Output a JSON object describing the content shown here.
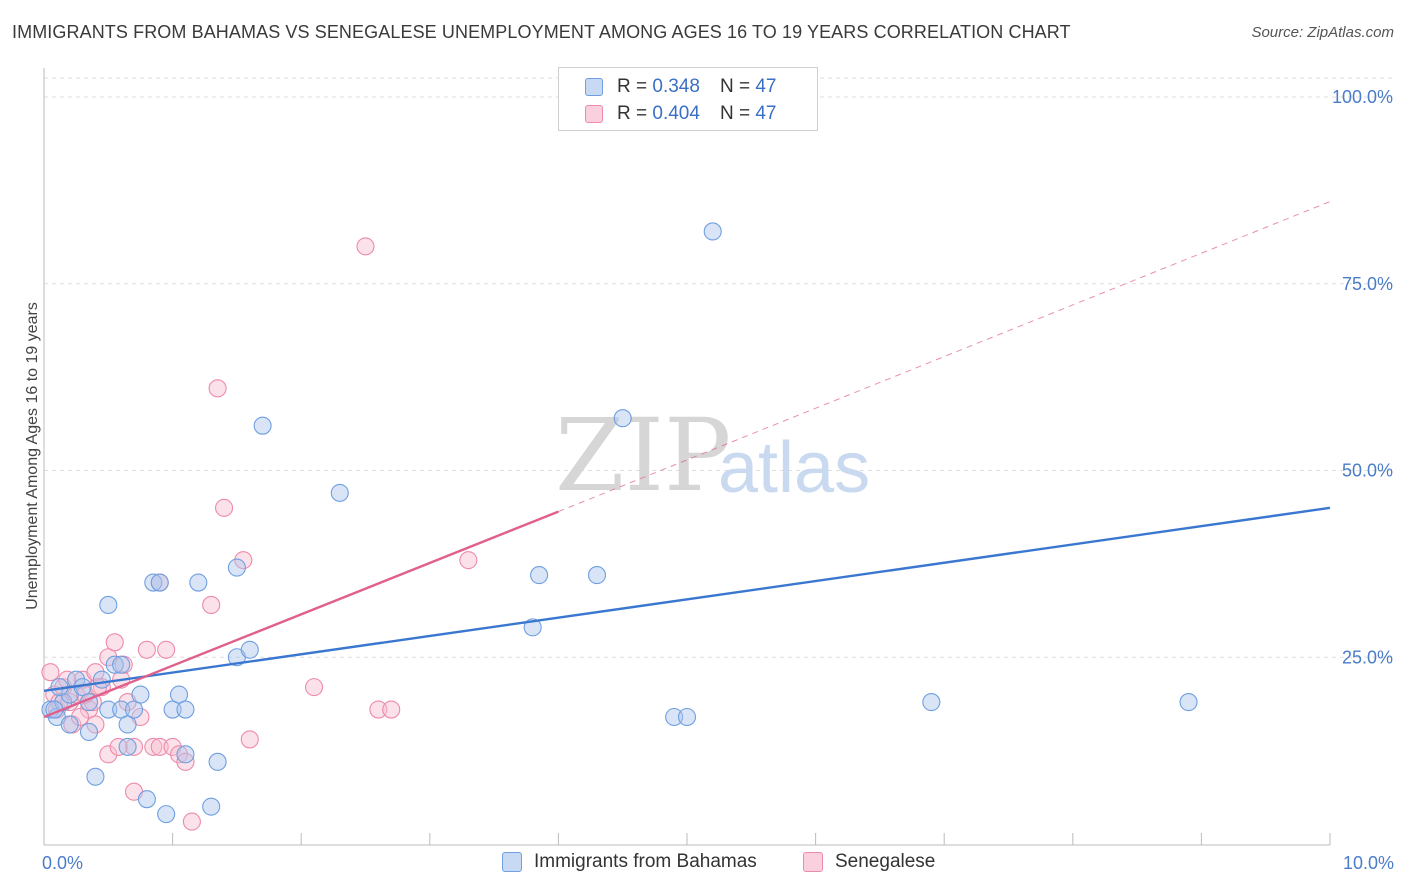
{
  "title": "IMMIGRANTS FROM BAHAMAS VS SENEGALESE UNEMPLOYMENT AMONG AGES 16 TO 19 YEARS CORRELATION CHART",
  "source": "Source: ZipAtlas.com",
  "watermark": {
    "zip": "ZIP",
    "atlas": "atlas"
  },
  "legend": {
    "r_label": "R =",
    "n_label": "N =",
    "rows": [
      {
        "r": "0.348",
        "n": "47"
      },
      {
        "r": "0.404",
        "n": "47"
      }
    ]
  },
  "colors": {
    "blue_fill": "#aac6ee",
    "blue_stroke": "#6f9fe0",
    "blue_line": "#3a77d0",
    "pink_fill": "#f6bfd0",
    "pink_stroke": "#ee8aaa",
    "pink_line": "#e0608d"
  },
  "chart_data": {
    "type": "scatter",
    "xlabel": "",
    "ylabel": "Unemployment Among Ages 16 to 19 years",
    "xlim": [
      0,
      10
    ],
    "ylim": [
      0,
      100
    ],
    "x_tick_labels": [
      "0.0%",
      "10.0%"
    ],
    "y_ticks": [
      25,
      50,
      75,
      100
    ],
    "y_tick_labels": [
      "25.0%",
      "50.0%",
      "75.0%",
      "100.0%"
    ],
    "grid": true,
    "legend_position": "top-center",
    "series": [
      {
        "name": "Immigrants from Bahamas",
        "color": "#6f9fe0",
        "points": [
          [
            0.05,
            18
          ],
          [
            0.1,
            17
          ],
          [
            0.15,
            19
          ],
          [
            0.2,
            16
          ],
          [
            0.2,
            20
          ],
          [
            0.25,
            22
          ],
          [
            0.3,
            21
          ],
          [
            0.35,
            15
          ],
          [
            0.35,
            19
          ],
          [
            0.4,
            9
          ],
          [
            0.45,
            22
          ],
          [
            0.5,
            18
          ],
          [
            0.5,
            32
          ],
          [
            0.55,
            24
          ],
          [
            0.6,
            24
          ],
          [
            0.6,
            18
          ],
          [
            0.65,
            13
          ],
          [
            0.65,
            16
          ],
          [
            0.7,
            18
          ],
          [
            0.75,
            20
          ],
          [
            0.8,
            6
          ],
          [
            0.85,
            35
          ],
          [
            0.9,
            35
          ],
          [
            0.95,
            4
          ],
          [
            1.0,
            18
          ],
          [
            1.05,
            20
          ],
          [
            1.1,
            18
          ],
          [
            1.1,
            12
          ],
          [
            1.2,
            35
          ],
          [
            1.3,
            5
          ],
          [
            1.35,
            11
          ],
          [
            1.5,
            25
          ],
          [
            1.5,
            37
          ],
          [
            1.6,
            26
          ],
          [
            1.7,
            56
          ],
          [
            2.3,
            47
          ],
          [
            3.8,
            29
          ],
          [
            3.85,
            36
          ],
          [
            4.3,
            36
          ],
          [
            4.5,
            57
          ],
          [
            4.9,
            17
          ],
          [
            5.0,
            17
          ],
          [
            5.2,
            82
          ],
          [
            6.9,
            19
          ],
          [
            8.9,
            19
          ],
          [
            0.08,
            18
          ],
          [
            0.12,
            21
          ]
        ]
      },
      {
        "name": "Senegalese",
        "color": "#ee8aaa",
        "points": [
          [
            0.05,
            23
          ],
          [
            0.08,
            20
          ],
          [
            0.1,
            18
          ],
          [
            0.15,
            21
          ],
          [
            0.2,
            19
          ],
          [
            0.22,
            16
          ],
          [
            0.25,
            20
          ],
          [
            0.3,
            22
          ],
          [
            0.35,
            18
          ],
          [
            0.38,
            19
          ],
          [
            0.4,
            23
          ],
          [
            0.4,
            16
          ],
          [
            0.45,
            21
          ],
          [
            0.5,
            25
          ],
          [
            0.5,
            12
          ],
          [
            0.55,
            27
          ],
          [
            0.6,
            22
          ],
          [
            0.65,
            19
          ],
          [
            0.7,
            13
          ],
          [
            0.7,
            7
          ],
          [
            0.75,
            17
          ],
          [
            0.8,
            26
          ],
          [
            0.85,
            13
          ],
          [
            0.9,
            35
          ],
          [
            0.9,
            13
          ],
          [
            0.95,
            26
          ],
          [
            1.0,
            13
          ],
          [
            1.05,
            12
          ],
          [
            1.1,
            11
          ],
          [
            1.15,
            3
          ],
          [
            1.3,
            32
          ],
          [
            1.35,
            61
          ],
          [
            1.4,
            45
          ],
          [
            1.55,
            38
          ],
          [
            1.6,
            14
          ],
          [
            2.1,
            21
          ],
          [
            2.5,
            80
          ],
          [
            2.6,
            18
          ],
          [
            2.7,
            18
          ],
          [
            3.3,
            38
          ],
          [
            0.12,
            19
          ],
          [
            0.18,
            22
          ],
          [
            0.28,
            17
          ],
          [
            0.32,
            20
          ],
          [
            0.42,
            21
          ],
          [
            0.62,
            24
          ],
          [
            0.58,
            13
          ]
        ]
      }
    ],
    "trend_lines": [
      {
        "series": "Immigrants from Bahamas",
        "from": [
          0,
          20.5
        ],
        "to": [
          10,
          45
        ],
        "style": "solid"
      },
      {
        "series": "Senegalese",
        "from": [
          0,
          17
        ],
        "to": [
          4,
          44.5
        ],
        "style": "solid"
      },
      {
        "series": "Senegalese",
        "from": [
          4,
          44.5
        ],
        "to": [
          10,
          86
        ],
        "style": "dashed"
      }
    ]
  }
}
